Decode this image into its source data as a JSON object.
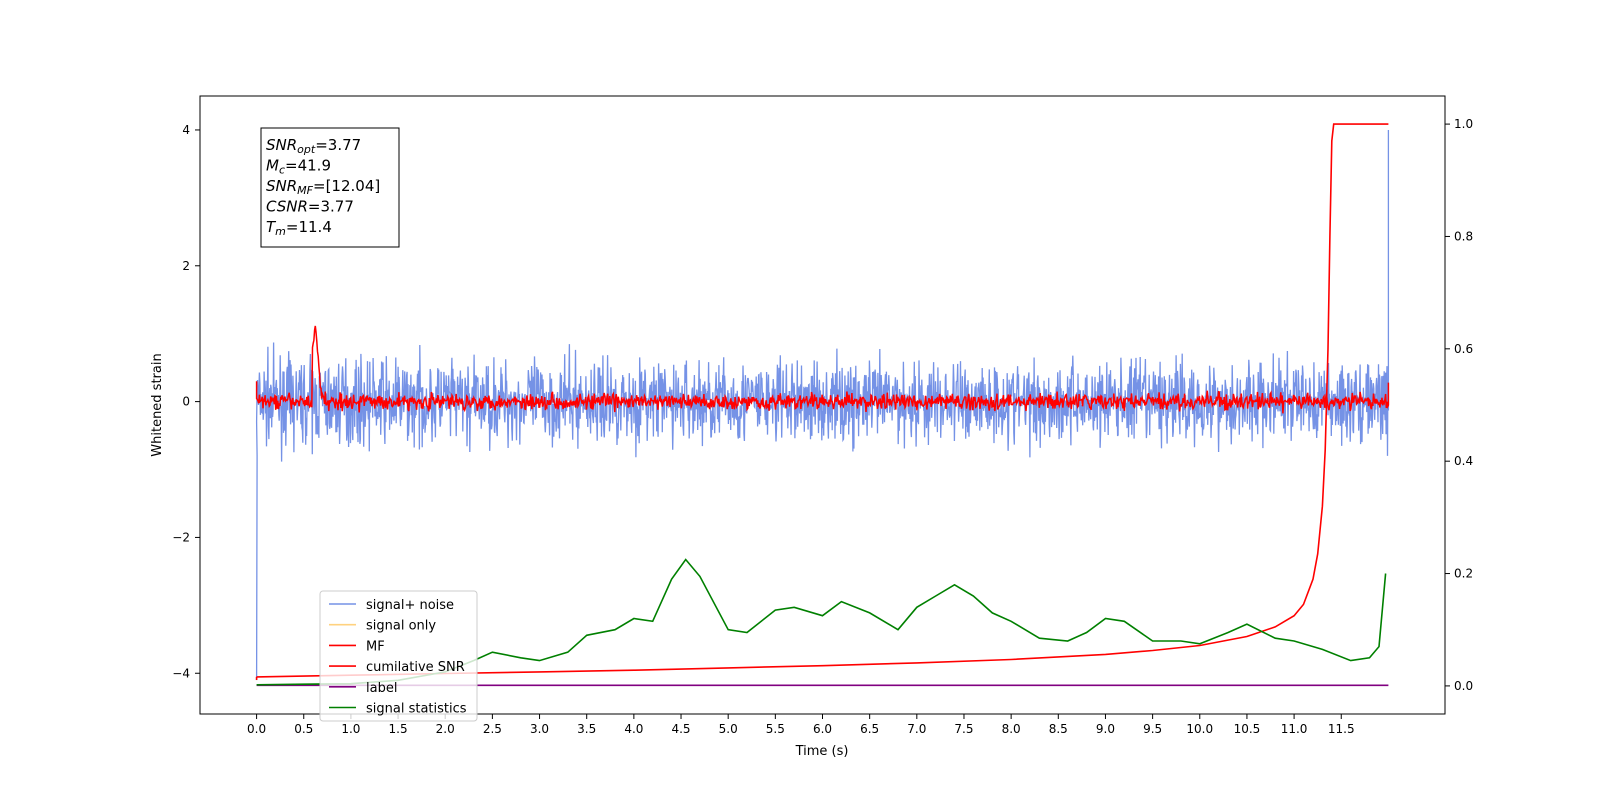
{
  "chart_data": {
    "type": "line",
    "xlabel": "Time (s)",
    "ylabel": "Whitened strain",
    "xlim": [
      -0.6,
      12.6
    ],
    "ylim": [
      -4.6,
      4.5
    ],
    "y2lim": [
      -0.05,
      1.05
    ],
    "x_ticks": [
      "0.0",
      "0.5",
      "1.0",
      "1.5",
      "2.0",
      "2.5",
      "3.0",
      "3.5",
      "4.0",
      "4.5",
      "5.0",
      "5.5",
      "6.0",
      "6.5",
      "7.0",
      "7.5",
      "8.0",
      "8.5",
      "9.0",
      "9.5",
      "10.0",
      "10.5",
      "11.0",
      "11.5"
    ],
    "y_ticks": [
      4,
      2,
      0,
      -2,
      -4
    ],
    "y_tick_labels": [
      "4",
      "2",
      "0",
      "−2",
      "−4"
    ],
    "y2_ticks": [
      "1.0",
      "0.8",
      "0.6",
      "0.4",
      "0.2",
      "0.0"
    ],
    "grid": false,
    "legend_position": "lower-left",
    "legend": [
      {
        "name": "signal+ noise",
        "color": "#7592e6"
      },
      {
        "name": "signal only",
        "color": "#ffd27f"
      },
      {
        "name": "MF",
        "color": "#ff0000"
      },
      {
        "name": "cumilative SNR",
        "color": "#ff0000"
      },
      {
        "name": "label",
        "color": "#800080"
      },
      {
        "name": "signal statistics",
        "color": "#008000"
      }
    ],
    "series": [
      {
        "name": "signal+ noise",
        "axis": "left",
        "x_range": [
          0,
          12
        ],
        "baseline": 0.0,
        "amplitude": 0.55,
        "peak": 1.15,
        "trough": -1.2,
        "start_value": -4.1,
        "end_value": 4.0
      },
      {
        "name": "MF",
        "axis": "left",
        "x_range": [
          0,
          12
        ],
        "baseline": 0.0,
        "amplitude": 0.1,
        "peak_x": 0.62,
        "peak_value": 1.0
      },
      {
        "name": "cumilative SNR",
        "axis": "right",
        "x": [
          0,
          1,
          2,
          3,
          4,
          5,
          6,
          7,
          8,
          9,
          9.5,
          10,
          10.5,
          10.8,
          11,
          11.1,
          11.2,
          11.25,
          11.3,
          11.33,
          11.36,
          11.38,
          11.4,
          11.42,
          11.5,
          12.0
        ],
        "values": [
          0.016,
          0.019,
          0.022,
          0.025,
          0.028,
          0.032,
          0.036,
          0.041,
          0.047,
          0.056,
          0.063,
          0.072,
          0.088,
          0.105,
          0.125,
          0.145,
          0.19,
          0.235,
          0.32,
          0.42,
          0.6,
          0.8,
          0.97,
          1.0,
          1.0,
          1.0
        ]
      },
      {
        "name": "label",
        "axis": "right",
        "x": [
          0,
          12
        ],
        "values": [
          0.001,
          0.001
        ]
      },
      {
        "name": "signal statistics",
        "axis": "right",
        "x": [
          0,
          0.5,
          1.0,
          1.5,
          2.0,
          2.3,
          2.5,
          2.8,
          3.0,
          3.3,
          3.5,
          3.8,
          4.0,
          4.2,
          4.4,
          4.55,
          4.7,
          5.0,
          5.2,
          5.5,
          5.7,
          6.0,
          6.2,
          6.5,
          6.8,
          7.0,
          7.2,
          7.4,
          7.6,
          7.8,
          8.0,
          8.3,
          8.6,
          8.8,
          9.0,
          9.2,
          9.5,
          9.8,
          10.0,
          10.3,
          10.5,
          10.8,
          11.0,
          11.3,
          11.6,
          11.8,
          11.9,
          11.97
        ],
        "values": [
          0.002,
          0.003,
          0.004,
          0.01,
          0.025,
          0.045,
          0.06,
          0.05,
          0.045,
          0.06,
          0.09,
          0.1,
          0.12,
          0.115,
          0.19,
          0.225,
          0.195,
          0.1,
          0.095,
          0.135,
          0.14,
          0.125,
          0.15,
          0.13,
          0.1,
          0.14,
          0.16,
          0.18,
          0.16,
          0.13,
          0.115,
          0.085,
          0.08,
          0.095,
          0.12,
          0.115,
          0.08,
          0.08,
          0.075,
          0.095,
          0.11,
          0.085,
          0.08,
          0.065,
          0.045,
          0.05,
          0.07,
          0.2
        ]
      }
    ],
    "annotation": {
      "lines": [
        {
          "sym": "SNR",
          "sub": "opt",
          "val": "=3.77"
        },
        {
          "sym": "M",
          "sub": "c",
          "val": "=41.9"
        },
        {
          "sym": "SNR",
          "sub": "MF",
          "val": "=[12.04]"
        },
        {
          "sym": "CSNR",
          "sub": "",
          "val": "=3.77"
        },
        {
          "sym": "T",
          "sub": "m",
          "val": "=11.4"
        }
      ]
    }
  }
}
